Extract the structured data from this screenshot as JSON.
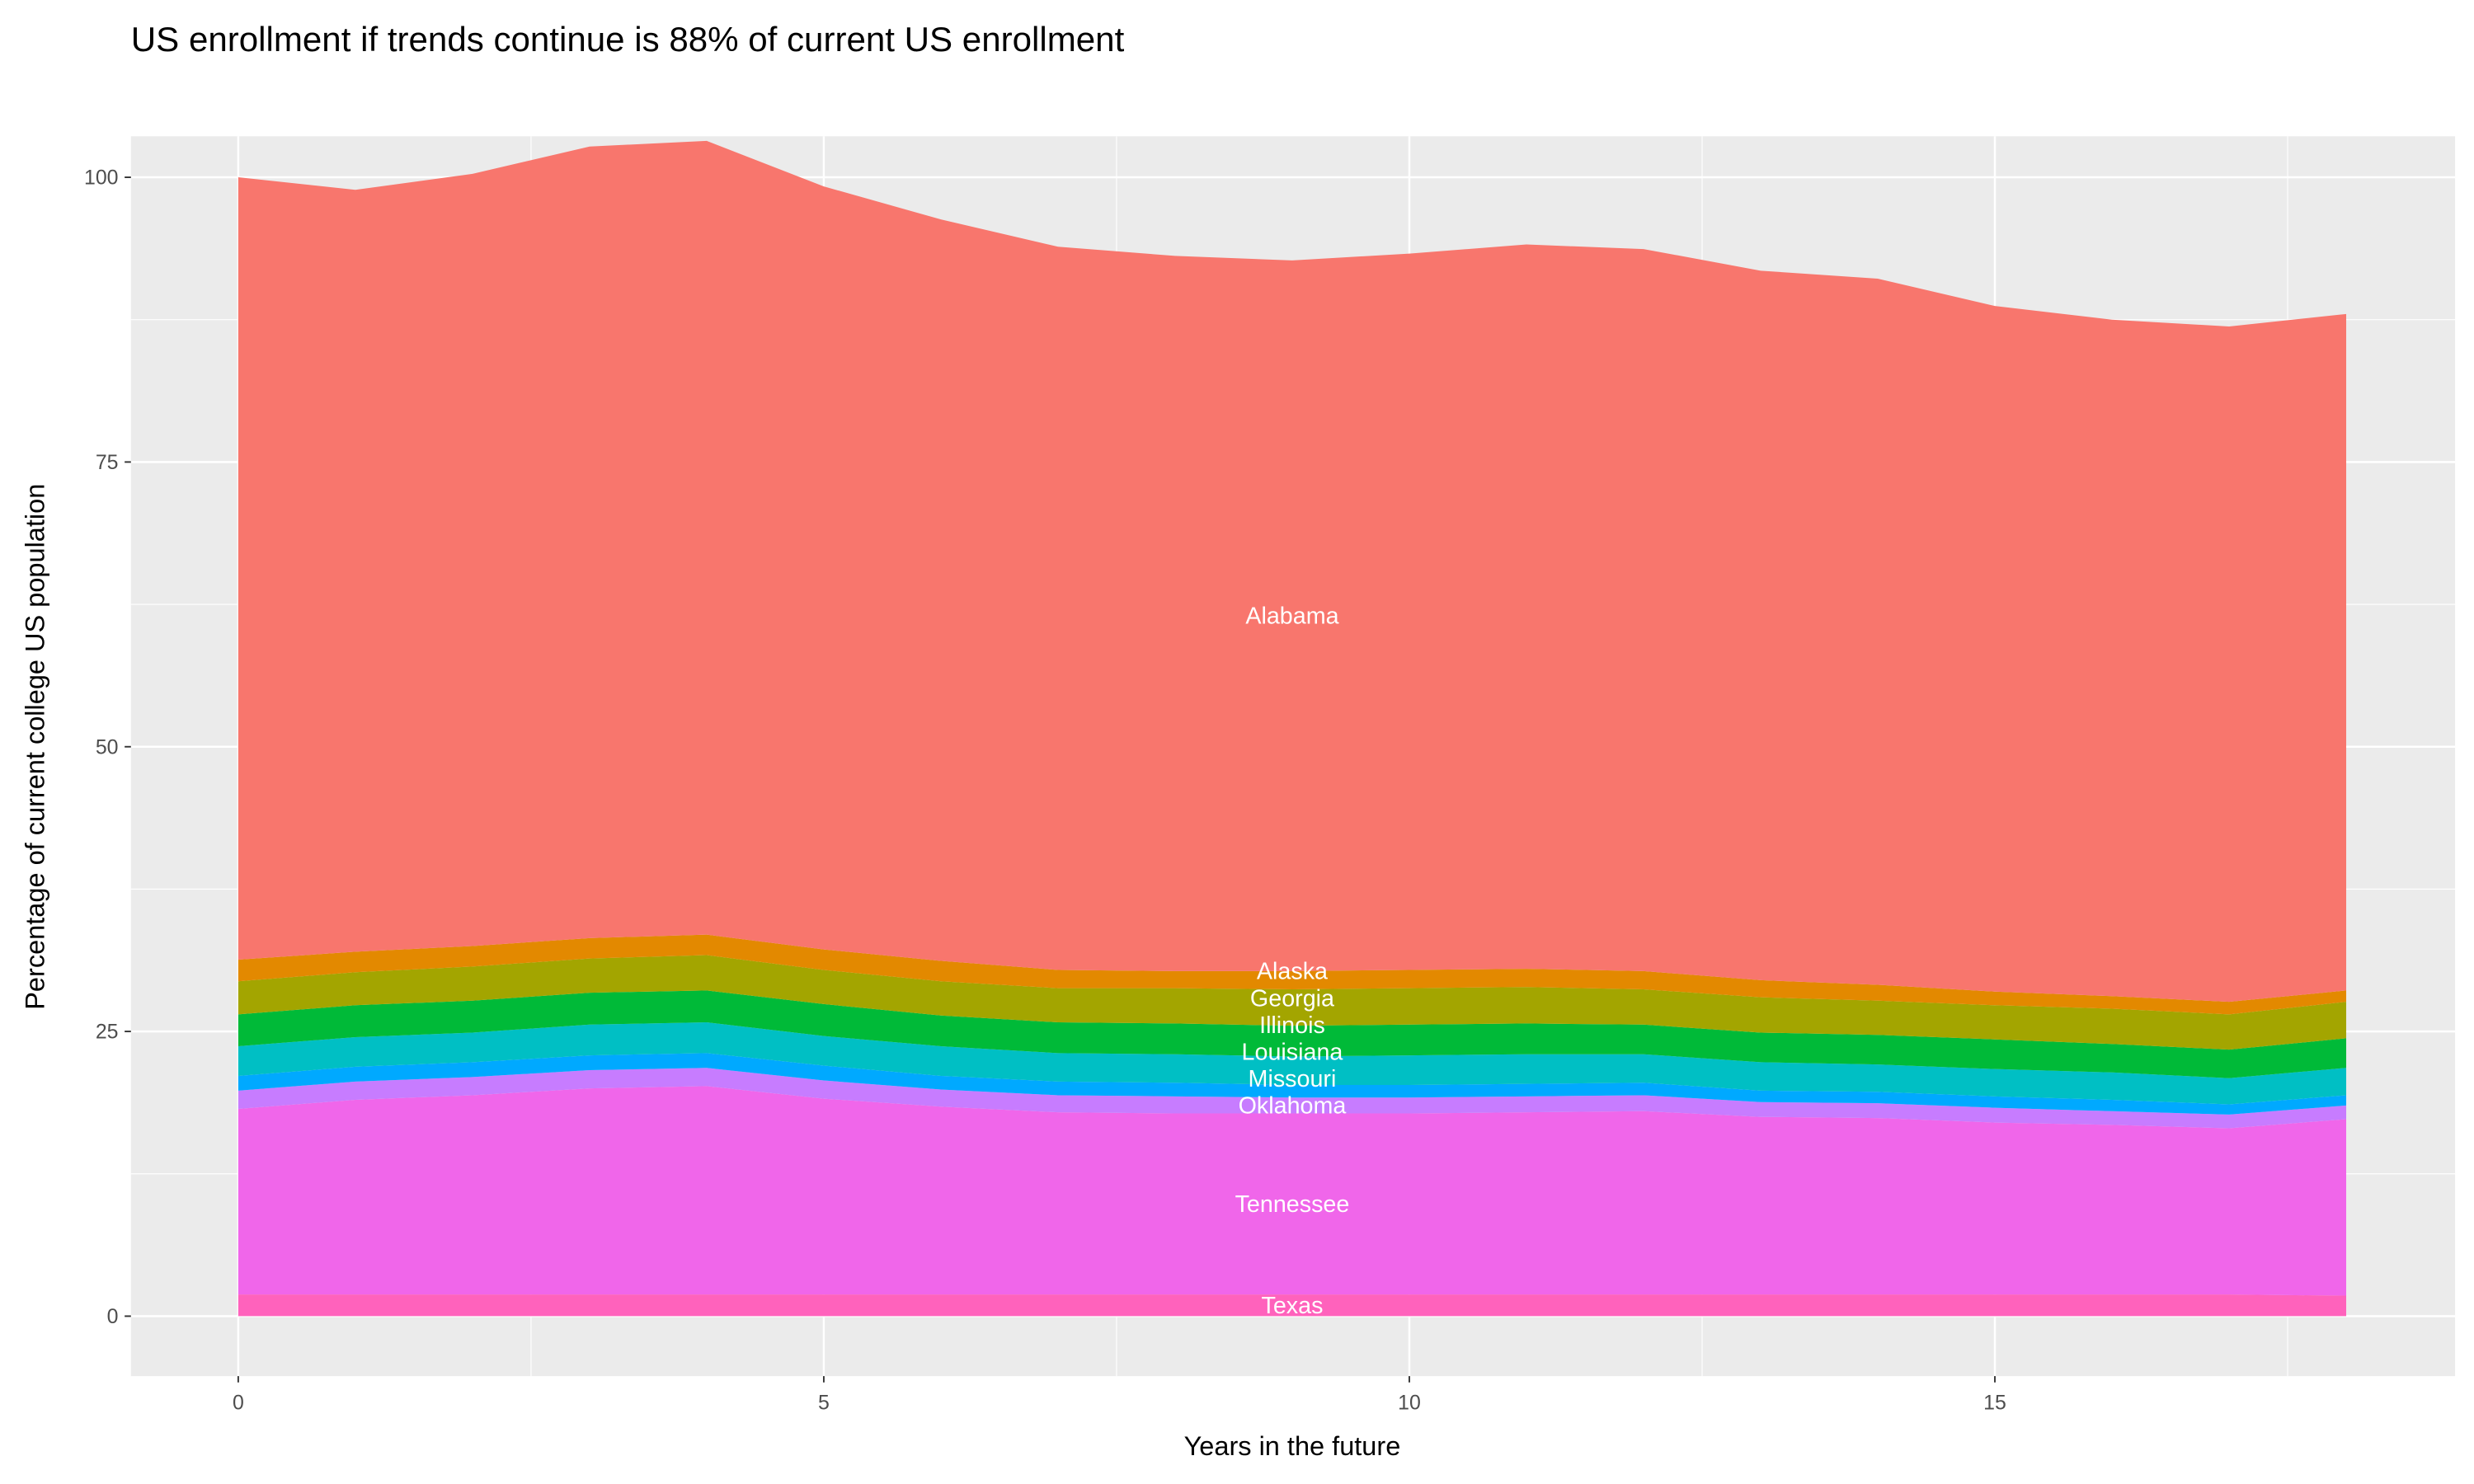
{
  "chart_data": {
    "type": "area",
    "stacked": true,
    "title": "US enrollment if trends continue is 88% of current US enrollment",
    "xlabel": "Years in the future",
    "ylabel": "Percentage of current college US population",
    "xlim": [
      -0.9,
      18.9
    ],
    "ylim": [
      -5.2,
      107.6
    ],
    "x_ticks": [
      0,
      5,
      10,
      15
    ],
    "y_ticks": [
      0,
      25,
      50,
      75,
      100
    ],
    "x_tick_labels": [
      "0",
      "5",
      "10",
      "15"
    ],
    "y_tick_labels": [
      "0",
      "25",
      "50",
      "75",
      "100"
    ],
    "grid": true,
    "background": "#EBEBEB",
    "legend": "none",
    "label_x": 9,
    "x": [
      0,
      1,
      2,
      3,
      4,
      5,
      6,
      7,
      8,
      9,
      10,
      11,
      12,
      13,
      14,
      15,
      16,
      17,
      18
    ],
    "series": [
      {
        "name": "Texas",
        "color": "#FF62BC",
        "values": [
          1.9,
          1.9,
          1.9,
          1.9,
          1.9,
          1.9,
          1.9,
          1.9,
          1.9,
          1.9,
          1.9,
          1.9,
          1.9,
          1.9,
          1.9,
          1.9,
          1.9,
          1.9,
          1.8
        ]
      },
      {
        "name": "Tennessee",
        "color": "#F066EA",
        "values": [
          16.3,
          17.1,
          17.5,
          18.1,
          18.3,
          17.2,
          16.5,
          16.0,
          15.9,
          15.9,
          15.9,
          16.0,
          16.1,
          15.6,
          15.5,
          15.1,
          14.9,
          14.6,
          15.5
        ]
      },
      {
        "name": "Oklahoma",
        "color": "#C77CFF",
        "values": [
          1.6,
          1.6,
          1.6,
          1.6,
          1.6,
          1.6,
          1.5,
          1.5,
          1.5,
          1.4,
          1.4,
          1.4,
          1.4,
          1.3,
          1.3,
          1.3,
          1.2,
          1.2,
          1.2
        ]
      },
      {
        "name": "Missouri",
        "color": "#00A9FF",
        "values": [
          1.3,
          1.3,
          1.3,
          1.3,
          1.3,
          1.3,
          1.2,
          1.2,
          1.2,
          1.1,
          1.1,
          1.1,
          1.1,
          1.0,
          1.0,
          1.0,
          1.0,
          0.9,
          0.9
        ]
      },
      {
        "name": "Louisiana",
        "color": "#00BFC4",
        "values": [
          2.6,
          2.6,
          2.6,
          2.7,
          2.7,
          2.6,
          2.6,
          2.5,
          2.5,
          2.5,
          2.6,
          2.6,
          2.5,
          2.5,
          2.4,
          2.4,
          2.4,
          2.3,
          2.4
        ]
      },
      {
        "name": "Illinois",
        "color": "#00BA38",
        "values": [
          2.8,
          2.8,
          2.8,
          2.8,
          2.8,
          2.8,
          2.7,
          2.7,
          2.7,
          2.7,
          2.7,
          2.7,
          2.6,
          2.6,
          2.6,
          2.6,
          2.5,
          2.5,
          2.6
        ]
      },
      {
        "name": "Georgia",
        "color": "#A3A500",
        "values": [
          2.9,
          2.9,
          3.0,
          3.0,
          3.1,
          3.0,
          3.0,
          3.0,
          3.1,
          3.2,
          3.2,
          3.2,
          3.1,
          3.1,
          3.0,
          3.0,
          3.1,
          3.1,
          3.2
        ]
      },
      {
        "name": "Alaska",
        "color": "#E38900",
        "values": [
          1.9,
          1.8,
          1.8,
          1.8,
          1.8,
          1.8,
          1.8,
          1.6,
          1.5,
          1.6,
          1.6,
          1.6,
          1.6,
          1.5,
          1.4,
          1.2,
          1.1,
          1.1,
          1.0
        ]
      },
      {
        "name": "Alabama",
        "color": "#F8766D",
        "values": [
          68.7,
          66.9,
          67.8,
          69.5,
          69.7,
          67.0,
          65.1,
          63.5,
          62.8,
          62.4,
          62.9,
          63.6,
          63.4,
          62.3,
          62.0,
          60.2,
          59.4,
          59.3,
          59.4
        ]
      }
    ]
  }
}
